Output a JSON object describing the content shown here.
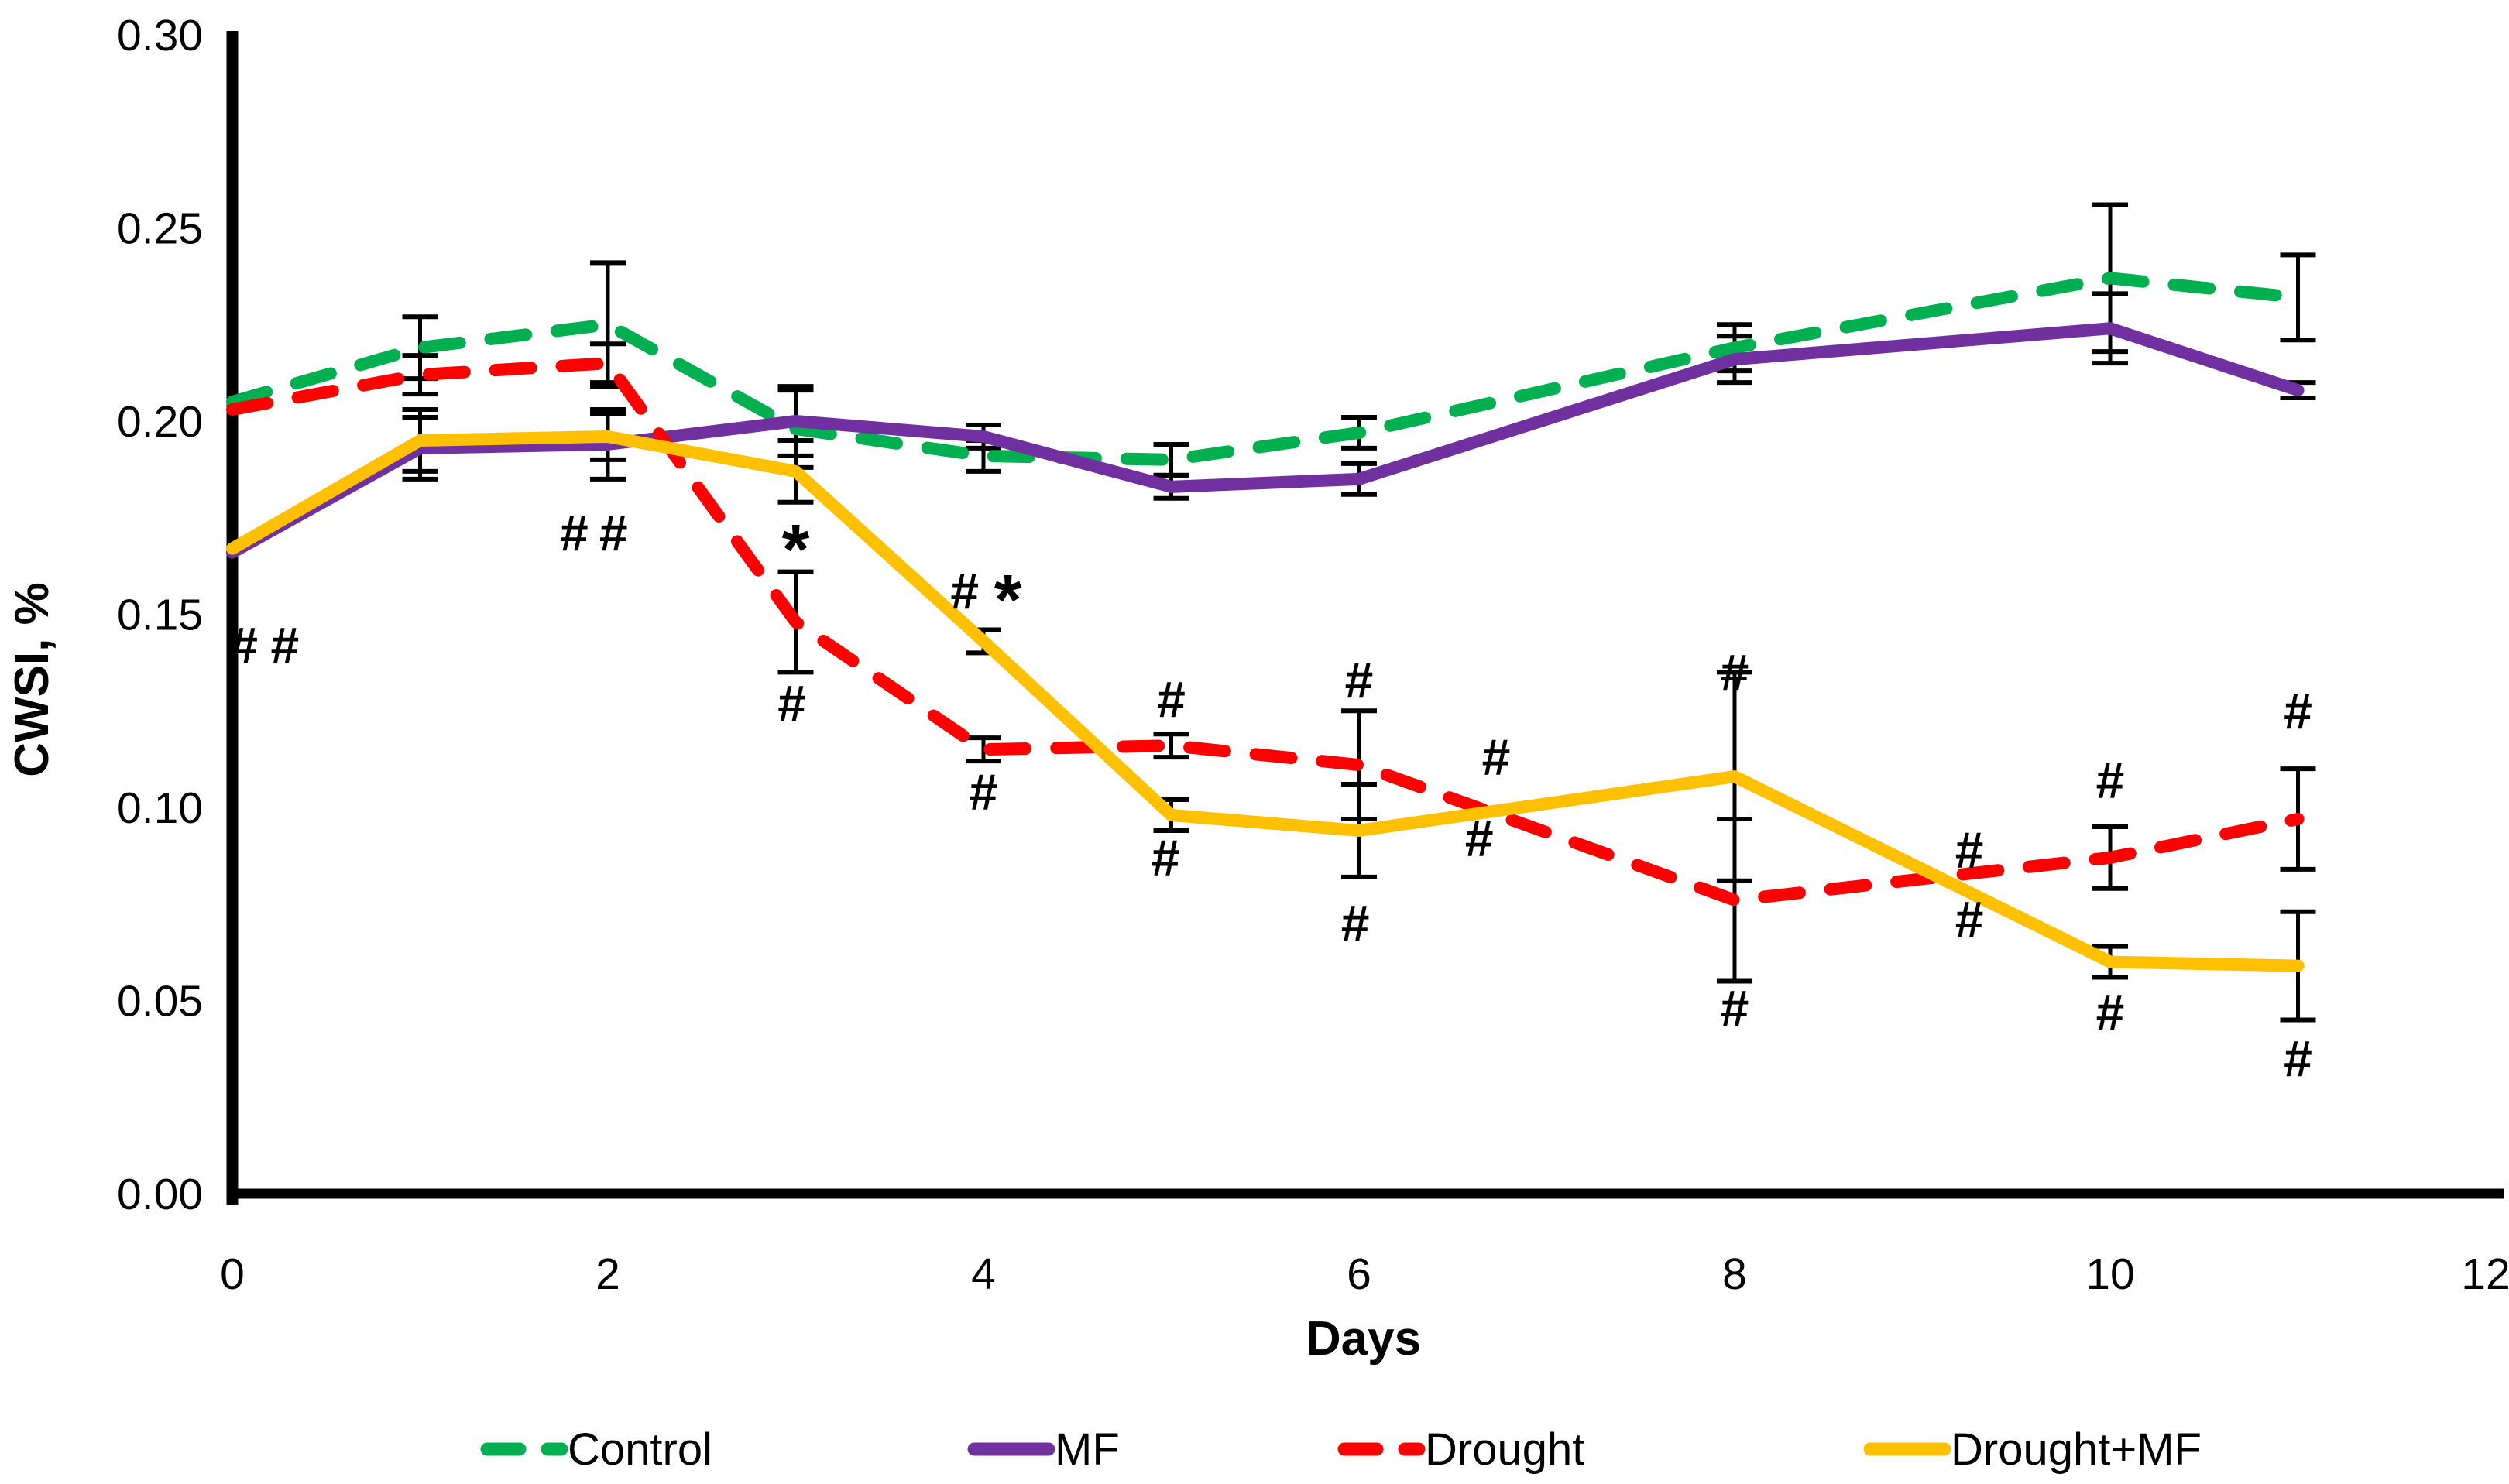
{
  "chart_data": {
    "type": "line",
    "title": "",
    "xlabel": "Days",
    "ylabel": "CWSI, %",
    "xlim": [
      0,
      12
    ],
    "ylim": [
      0.0,
      0.3
    ],
    "x_ticks": [
      0,
      2,
      4,
      6,
      8,
      10,
      12
    ],
    "y_ticks": [
      "0.00",
      "0.05",
      "0.10",
      "0.15",
      "0.20",
      "0.25",
      "0.30"
    ],
    "grid": false,
    "legend_position": "bottom",
    "error_bars": true,
    "x": [
      0,
      1,
      2,
      3,
      4,
      5,
      6,
      8,
      10,
      11
    ],
    "series": [
      {
        "name": "Control",
        "color": "#00B050",
        "style": "dashed",
        "values": [
          0.205,
          0.219,
          0.225,
          0.198,
          0.191,
          0.19,
          0.197,
          0.219,
          0.237,
          0.232
        ],
        "error": [
          0,
          0.008,
          0.016,
          0.01,
          0.004,
          0.004,
          0.004,
          0.006,
          0.019,
          0.011
        ]
      },
      {
        "name": "MF",
        "color": "#7030A0",
        "style": "solid",
        "values": [
          0.166,
          0.193,
          0.194,
          0.2,
          0.196,
          0.183,
          0.185,
          0.216,
          0.224,
          0.208
        ],
        "error": [
          0,
          0.008,
          0.009,
          0.009,
          0.003,
          0.003,
          0.004,
          0.006,
          0.009,
          0.002
        ]
      },
      {
        "name": "Drought",
        "color": "#FF0000",
        "style": "dashed",
        "values": [
          0.203,
          0.212,
          0.215,
          0.148,
          0.115,
          0.116,
          0.111,
          0.076,
          0.087,
          0.097
        ],
        "error": [
          0,
          0.005,
          0.005,
          0.013,
          0.003,
          0.003,
          0.014,
          0.021,
          0.008,
          0.013
        ]
      },
      {
        "name": "Drought+MF",
        "color": "#FFC000",
        "style": "solid",
        "values": [
          0.167,
          0.195,
          0.196,
          0.187,
          0.143,
          0.098,
          0.094,
          0.108,
          0.06,
          0.059
        ],
        "error": [
          0,
          0.008,
          0.006,
          0.008,
          0.003,
          0.004,
          0.012,
          0.027,
          0.004,
          0.014
        ]
      }
    ],
    "annotations": [
      {
        "text": "#",
        "color": "#7030A0",
        "day": 0.06,
        "value": 0.142
      },
      {
        "text": "#",
        "color": "#BF8F00",
        "day": 0.28,
        "value": 0.142
      },
      {
        "text": "#",
        "color": "#7030A0",
        "day": 1.82,
        "value": 0.171
      },
      {
        "text": "#",
        "color": "#BF8F00",
        "day": 2.03,
        "value": 0.171
      },
      {
        "text": "*",
        "color": "#000000",
        "day": 3.0,
        "value": 0.17
      },
      {
        "text": "#",
        "color": "#FF0000",
        "day": 2.98,
        "value": 0.127
      },
      {
        "text": "#",
        "color": "#BF8F00",
        "day": 3.9,
        "value": 0.156
      },
      {
        "text": "*",
        "color": "#000000",
        "day": 4.13,
        "value": 0.157
      },
      {
        "text": "#",
        "color": "#FF0000",
        "day": 4.0,
        "value": 0.104
      },
      {
        "text": "#",
        "color": "#FF0000",
        "day": 5.0,
        "value": 0.128
      },
      {
        "text": "#",
        "color": "#BF8F00",
        "day": 4.97,
        "value": 0.087
      },
      {
        "text": "#",
        "color": "#FF0000",
        "day": 6.0,
        "value": 0.133
      },
      {
        "text": "#",
        "color": "#BF8F00",
        "day": 5.98,
        "value": 0.07
      },
      {
        "text": "#",
        "color": "#BF8F00",
        "day": 6.73,
        "value": 0.113
      },
      {
        "text": "#",
        "color": "#FF0000",
        "day": 6.64,
        "value": 0.092
      },
      {
        "text": "#",
        "color": "#BF8F00",
        "day": 8.0,
        "value": 0.135
      },
      {
        "text": "#",
        "color": "#FF0000",
        "day": 8.0,
        "value": 0.048
      },
      {
        "text": "#",
        "color": "#BF8F00",
        "day": 9.25,
        "value": 0.089
      },
      {
        "text": "#",
        "color": "#FF0000",
        "day": 9.25,
        "value": 0.071
      },
      {
        "text": "#",
        "color": "#FF0000",
        "day": 10.0,
        "value": 0.107
      },
      {
        "text": "#",
        "color": "#BF8F00",
        "day": 10.0,
        "value": 0.047
      },
      {
        "text": "#",
        "color": "#FF0000",
        "day": 11.0,
        "value": 0.125
      },
      {
        "text": "#",
        "color": "#BF8F00",
        "day": 11.0,
        "value": 0.035
      }
    ]
  }
}
